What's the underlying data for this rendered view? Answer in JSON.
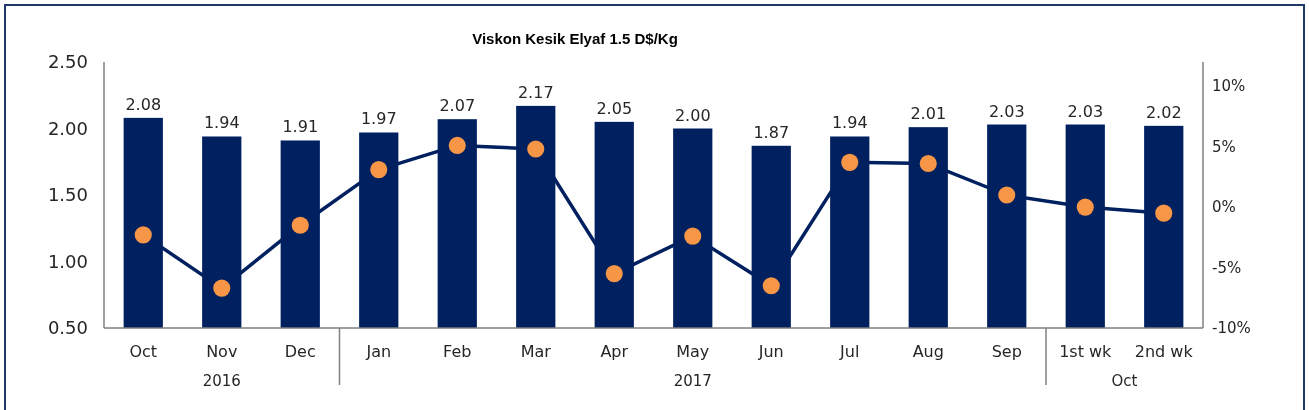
{
  "chart_data": {
    "type": "bar",
    "title": "Viskon Kesik Elyaf 1.5 D$/Kg",
    "categories": [
      "Oct",
      "Nov",
      "Dec",
      "Jan",
      "Feb",
      "Mar",
      "Apr",
      "May",
      "Jun",
      "Jul",
      "Aug",
      "Sep",
      "1st wk",
      "2nd wk"
    ],
    "series": [
      {
        "color": "#002060",
        "values": [
          2.08,
          1.94,
          1.91,
          1.97,
          2.07,
          2.17,
          2.05,
          2.0,
          1.87,
          1.94,
          2.01,
          2.03,
          2.03,
          2.02
        ],
        "value_labels": [
          "2.08",
          "1.94",
          "1.91",
          "1.97",
          "2.07",
          "2.17",
          "2.05",
          "2.00",
          "1.87",
          "1.94",
          "2.01",
          "2.03",
          "2.03",
          "2.02"
        ]
      },
      {
        "type": "line",
        "axis": "y2",
        "color": "#002060",
        "colors": [
          "#f79646",
          "#f79646",
          "#f79646",
          "#f79646",
          "#f79646",
          "#f79646",
          "#f79646",
          "#f79646",
          "#f79646",
          "#f79646",
          "#f79646",
          "#f79646",
          "#f79646",
          "#f79646"
        ],
        "values": [
          -2.3,
          -6.7,
          -1.5,
          3.1,
          5.1,
          4.8,
          -5.5,
          -2.4,
          -6.5,
          3.7,
          3.6,
          1.0,
          0.0,
          -0.5
        ]
      }
    ],
    "ylim": [
      0.5,
      2.5
    ],
    "yticks": [
      {
        "value": 0.5,
        "label": "0.50"
      },
      {
        "value": 1,
        "label": "1.00"
      },
      {
        "value": 1.5,
        "label": "1.50"
      },
      {
        "value": 2,
        "label": "2.00"
      },
      {
        "value": 2.5,
        "label": "2.50"
      }
    ],
    "y2lim": [
      -10,
      12
    ],
    "y2ticks": [
      {
        "value": -10,
        "label": "-10%"
      },
      {
        "value": -5,
        "label": "-5%"
      },
      {
        "value": 0,
        "label": "0%"
      },
      {
        "value": 5,
        "label": "5%"
      },
      {
        "value": 10,
        "label": "10%"
      }
    ],
    "annotations": [
      "2016",
      "2017",
      "Oct"
    ],
    "marker": "circle",
    "line_style": "solid"
  }
}
